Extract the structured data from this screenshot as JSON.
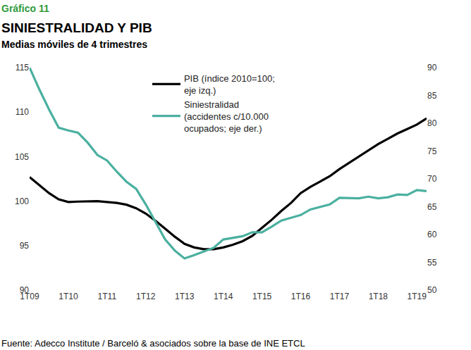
{
  "chart_data": {
    "type": "line",
    "kicker": "Gráfico 11",
    "title": "SINIESTRALIDAD Y PIB",
    "subtitle": "Medias móviles de 4 trimestres",
    "source": "Fuente: Adecco Institute / Barceló & asociados sobre la base de INE ETCL",
    "categories": [
      "1T09",
      null,
      null,
      null,
      "1T10",
      null,
      null,
      null,
      "1T11",
      null,
      null,
      null,
      "1T12",
      null,
      null,
      null,
      "1T13",
      null,
      null,
      null,
      "1T14",
      null,
      null,
      null,
      "1T15",
      null,
      null,
      null,
      "1T16",
      null,
      null,
      null,
      "1T17",
      null,
      null,
      null,
      "1T18",
      null,
      null,
      null,
      "1T19",
      null
    ],
    "series": [
      {
        "name": "PIB (índice 2010=100;\neje izq.)",
        "color": "#000000",
        "axis": "y",
        "values": [
          102.7,
          101.8,
          100.9,
          100.2,
          99.9,
          99.95,
          100.0,
          100.0,
          99.9,
          99.8,
          99.6,
          99.2,
          98.6,
          97.8,
          96.9,
          96.0,
          95.2,
          94.8,
          94.6,
          94.6,
          94.8,
          95.1,
          95.5,
          96.1,
          97.0,
          97.9,
          98.9,
          99.8,
          100.9,
          101.6,
          102.2,
          102.8,
          103.6,
          104.3,
          105.0,
          105.7,
          106.4,
          107.0,
          107.6,
          108.1,
          108.6,
          109.3
        ]
      },
      {
        "name": "Siniestralidad\n(accidentes c/10.000\nocupados; eje der.)",
        "color": "#4bb0a0",
        "axis": "y2",
        "values": [
          90.0,
          86.1,
          82.5,
          79.2,
          78.7,
          78.3,
          76.5,
          74.3,
          73.3,
          71.3,
          69.5,
          68.2,
          65.4,
          62.2,
          59.1,
          57.1,
          55.7,
          56.3,
          57.0,
          57.6,
          59.1,
          59.4,
          59.7,
          60.4,
          60.4,
          61.4,
          62.5,
          63.0,
          63.5,
          64.5,
          65.0,
          65.4,
          66.6,
          66.5,
          66.5,
          66.8,
          66.5,
          66.7,
          67.2,
          67.1,
          68.0,
          67.8
        ]
      }
    ],
    "ylim": [
      90,
      115
    ],
    "yticks": [
      90,
      95,
      100,
      105,
      110,
      115
    ],
    "y2lim": [
      50,
      90
    ],
    "y2ticks": [
      50,
      55,
      60,
      65,
      70,
      75,
      80,
      85,
      90
    ],
    "grid": false,
    "legend": "top"
  }
}
